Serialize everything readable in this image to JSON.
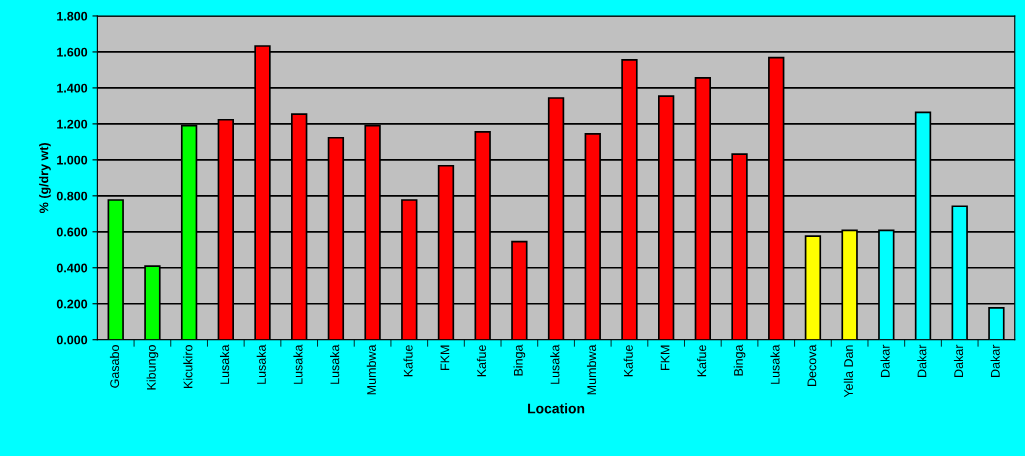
{
  "chart_data": {
    "type": "bar",
    "xlabel": "Location",
    "ylabel": "% (g/dry wt)",
    "categories": [
      "Gasabo",
      "Kibungo",
      "Kicukiro",
      "Lusaka",
      "Lusaka",
      "Lusaka",
      "Lusaka",
      "Mumbwa",
      "Kafue",
      "FKM",
      "Kafue",
      "Binga",
      "Lusaka",
      "Mumbwa",
      "Kafue",
      "FKM",
      "Kafue",
      "Binga",
      "Lusaka",
      "Decova",
      "Yella Dan",
      "Dakar",
      "Dakar",
      "Dakar",
      "Dakar"
    ],
    "values": [
      0.777,
      0.409,
      1.19,
      1.223,
      1.633,
      1.254,
      1.123,
      1.19,
      0.777,
      0.967,
      1.156,
      0.545,
      1.344,
      1.144,
      1.556,
      1.354,
      1.456,
      1.032,
      1.568,
      0.576,
      0.608,
      0.608,
      1.264,
      0.742,
      0.177
    ],
    "colors": [
      "#00ff00",
      "#00ff00",
      "#00ff00",
      "#ff0000",
      "#ff0000",
      "#ff0000",
      "#ff0000",
      "#ff0000",
      "#ff0000",
      "#ff0000",
      "#ff0000",
      "#ff0000",
      "#ff0000",
      "#ff0000",
      "#ff0000",
      "#ff0000",
      "#ff0000",
      "#ff0000",
      "#ff0000",
      "#ffff00",
      "#ffff00",
      "#00ffff",
      "#00ffff",
      "#00ffff",
      "#00ffff"
    ],
    "ylim": [
      0,
      1.8
    ],
    "yticks": [
      {
        "value": 0,
        "label": "0.000"
      },
      {
        "value": 0.2,
        "label": "0.200"
      },
      {
        "value": 0.4,
        "label": "0.400"
      },
      {
        "value": 0.6,
        "label": "0.600"
      },
      {
        "value": 0.8,
        "label": "0.800"
      },
      {
        "value": 1.0,
        "label": "1.000"
      },
      {
        "value": 1.2,
        "label": "1.200"
      },
      {
        "value": 1.4,
        "label": "1.400"
      },
      {
        "value": 1.6,
        "label": "1.600"
      },
      {
        "value": 1.8,
        "label": "1.800"
      }
    ],
    "grid": "y",
    "legend": false
  }
}
